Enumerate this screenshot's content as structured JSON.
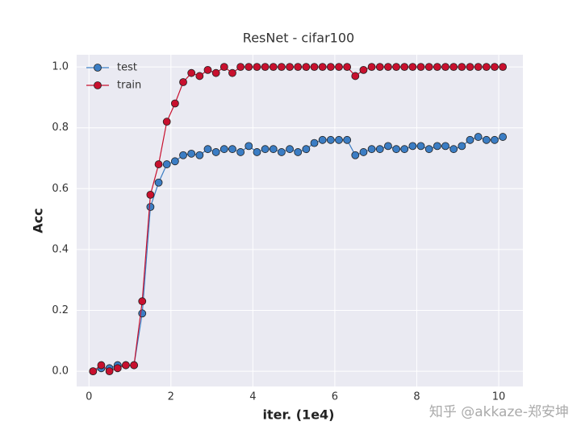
{
  "chart_data": {
    "type": "line",
    "title": "ResNet - cifar100",
    "x_label": "iter. (1e4)",
    "y_label": "Acc",
    "watermark": "知乎 @akkaze-郑安坤",
    "x": [
      0.1,
      0.3,
      0.5,
      0.7,
      0.9,
      1.1,
      1.3,
      1.5,
      1.7,
      1.9,
      2.1,
      2.3,
      2.5,
      2.7,
      2.9,
      3.1,
      3.3,
      3.5,
      3.7,
      3.9,
      4.1,
      4.3,
      4.5,
      4.7,
      4.9,
      5.1,
      5.3,
      5.5,
      5.7,
      5.9,
      6.1,
      6.3,
      6.5,
      6.7,
      6.9,
      7.1,
      7.3,
      7.5,
      7.7,
      7.9,
      8.1,
      8.3,
      8.5,
      8.7,
      8.9,
      9.1,
      9.3,
      9.5,
      9.7,
      9.9,
      10.1
    ],
    "series": [
      {
        "name": "test",
        "color": "#3b7dc4",
        "values": [
          0,
          0.01,
          0.01,
          0.02,
          0.02,
          0.02,
          0.19,
          0.54,
          0.62,
          0.68,
          0.69,
          0.71,
          0.715,
          0.71,
          0.73,
          0.72,
          0.73,
          0.73,
          0.72,
          0.74,
          0.72,
          0.73,
          0.73,
          0.72,
          0.73,
          0.72,
          0.73,
          0.75,
          0.76,
          0.76,
          0.76,
          0.76,
          0.71,
          0.72,
          0.73,
          0.73,
          0.74,
          0.73,
          0.73,
          0.74,
          0.74,
          0.73,
          0.74,
          0.74,
          0.73,
          0.74,
          0.76,
          0.77,
          0.76,
          0.76,
          0.77
        ]
      },
      {
        "name": "train",
        "color": "#c8102e",
        "values": [
          0,
          0.02,
          0,
          0.01,
          0.02,
          0.02,
          0.23,
          0.58,
          0.68,
          0.82,
          0.88,
          0.95,
          0.98,
          0.97,
          0.99,
          0.98,
          1,
          0.98,
          1,
          1,
          1,
          1,
          1,
          1,
          1,
          1,
          1,
          1,
          1,
          1,
          1,
          1,
          0.97,
          0.99,
          1,
          1,
          1,
          1,
          1,
          1,
          1,
          1,
          1,
          1,
          1,
          1,
          1,
          1,
          1,
          1,
          1
        ]
      }
    ],
    "xlim": [
      -0.3,
      10.59
    ],
    "ylim": [
      -0.05,
      1.04
    ],
    "xticks": [
      0,
      2,
      4,
      6,
      8,
      10
    ],
    "yticks": [
      {
        "value": 0,
        "label": "0.0"
      },
      0.2,
      0.4,
      0.6,
      0.8,
      {
        "value": 1,
        "label": "1.0"
      }
    ],
    "grid": true,
    "legend": "upper-left"
  }
}
